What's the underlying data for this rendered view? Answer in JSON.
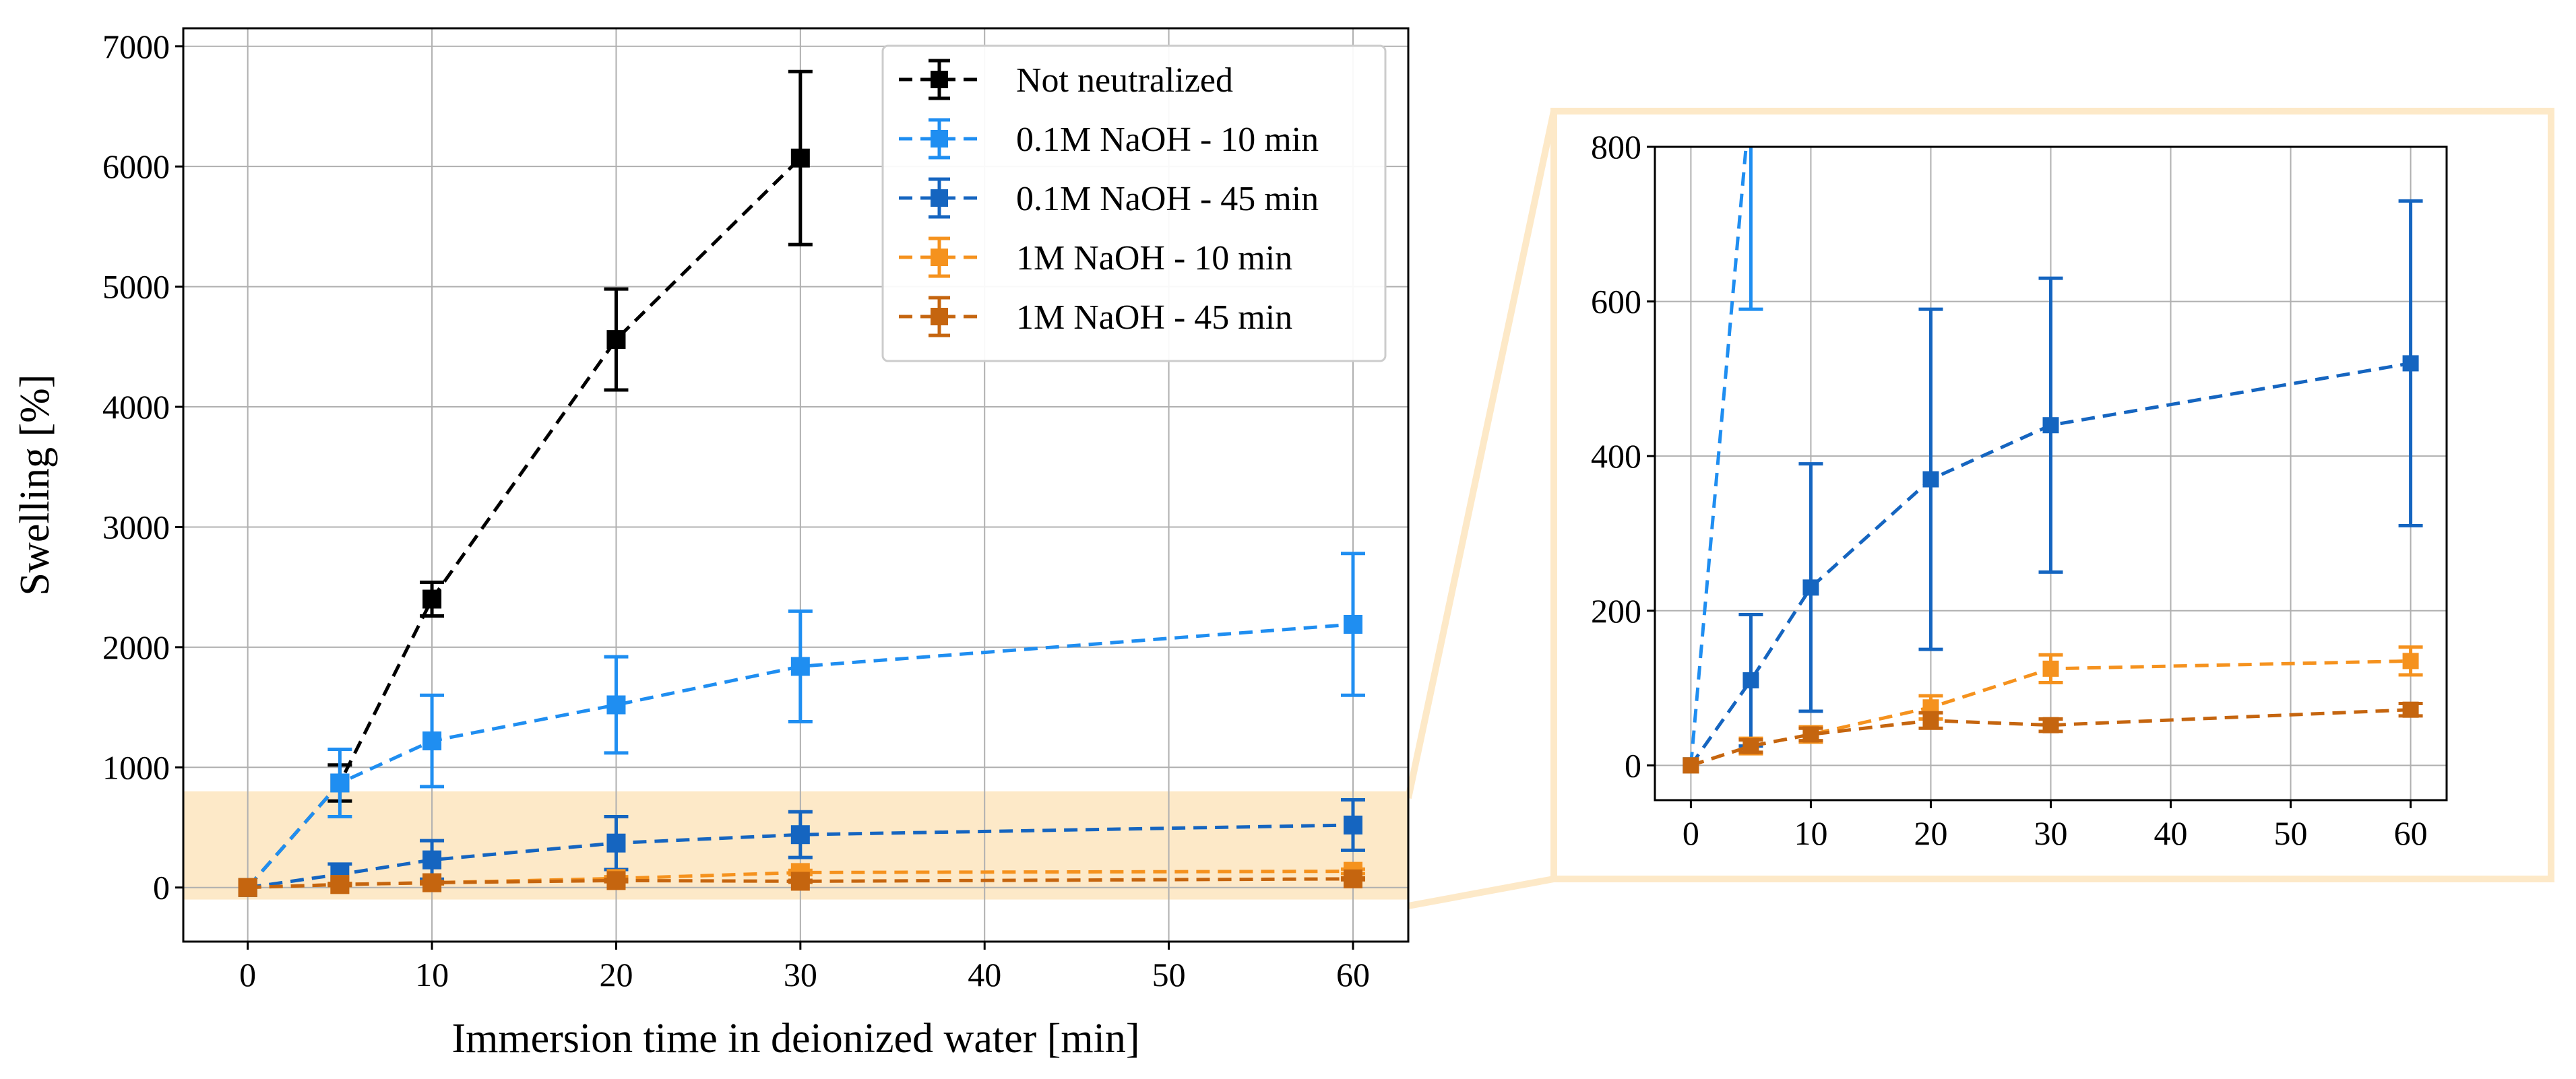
{
  "chart_data": [
    {
      "type": "line",
      "xlabel": "Immersion time in deionized water [min]",
      "ylabel": "Swelling [%]",
      "xlim": [
        -3.5,
        63
      ],
      "ylim": [
        -450,
        7150
      ],
      "xticks": [
        0,
        10,
        20,
        30,
        40,
        50,
        60
      ],
      "yticks": [
        0,
        1000,
        2000,
        3000,
        4000,
        5000,
        6000,
        7000
      ],
      "grid": true,
      "legend_position": "top-right",
      "highlight_band": {
        "y_range": [
          -100,
          800
        ],
        "color": "#fde9c8"
      },
      "series": [
        {
          "name": "Not neutralized",
          "color": "#000000",
          "x": [
            0,
            5,
            10,
            20,
            30
          ],
          "y": [
            0,
            870,
            2400,
            4560,
            6070
          ],
          "err": [
            0,
            150,
            140,
            420,
            720
          ]
        },
        {
          "name": "0.1M NaOH - 10 min",
          "color": "#1f8ef1",
          "x": [
            0,
            5,
            10,
            20,
            30,
            60
          ],
          "y": [
            0,
            870,
            1220,
            1520,
            1840,
            2190
          ],
          "err": [
            0,
            280,
            380,
            400,
            460,
            590
          ]
        },
        {
          "name": "0.1M NaOH - 45 min",
          "color": "#1565c0",
          "x": [
            0,
            5,
            10,
            20,
            30,
            60
          ],
          "y": [
            0,
            110,
            230,
            370,
            440,
            520
          ],
          "err": [
            0,
            85,
            160,
            220,
            190,
            210
          ]
        },
        {
          "name": "1M NaOH - 10 min",
          "color": "#f5921e",
          "x": [
            0,
            5,
            10,
            20,
            30,
            60
          ],
          "y": [
            0,
            25,
            40,
            75,
            125,
            135
          ],
          "err": [
            0,
            10,
            10,
            15,
            18,
            18
          ]
        },
        {
          "name": "1M NaOH - 45 min",
          "color": "#c5650f",
          "x": [
            0,
            5,
            10,
            20,
            30,
            60
          ],
          "y": [
            0,
            25,
            40,
            58,
            52,
            72
          ],
          "err": [
            0,
            8,
            8,
            10,
            8,
            8
          ]
        }
      ]
    },
    {
      "type": "line",
      "xlabel": "",
      "ylabel": "",
      "xlim": [
        -3,
        63
      ],
      "ylim": [
        -45,
        800
      ],
      "xticks": [
        0,
        10,
        20,
        30,
        40,
        50,
        60
      ],
      "yticks": [
        0,
        200,
        400,
        600,
        800
      ],
      "grid": true,
      "series": [
        {
          "name": "0.1M NaOH - 10 min",
          "color": "#1f8ef1",
          "x": [
            0,
            5
          ],
          "y": [
            0,
            870
          ],
          "err": [
            0,
            280
          ]
        },
        {
          "name": "0.1M NaOH - 45 min",
          "color": "#1565c0",
          "x": [
            0,
            5,
            10,
            20,
            30,
            60
          ],
          "y": [
            0,
            110,
            230,
            370,
            440,
            520
          ],
          "err": [
            0,
            85,
            160,
            220,
            190,
            210
          ]
        },
        {
          "name": "1M NaOH - 10 min",
          "color": "#f5921e",
          "x": [
            0,
            5,
            10,
            20,
            30,
            60
          ],
          "y": [
            0,
            25,
            40,
            75,
            125,
            135
          ],
          "err": [
            0,
            10,
            10,
            15,
            18,
            18
          ]
        },
        {
          "name": "1M NaOH - 45 min",
          "color": "#c5650f",
          "x": [
            0,
            5,
            10,
            20,
            30,
            60
          ],
          "y": [
            0,
            25,
            40,
            58,
            52,
            72
          ],
          "err": [
            0,
            8,
            8,
            10,
            8,
            8
          ]
        }
      ]
    }
  ]
}
